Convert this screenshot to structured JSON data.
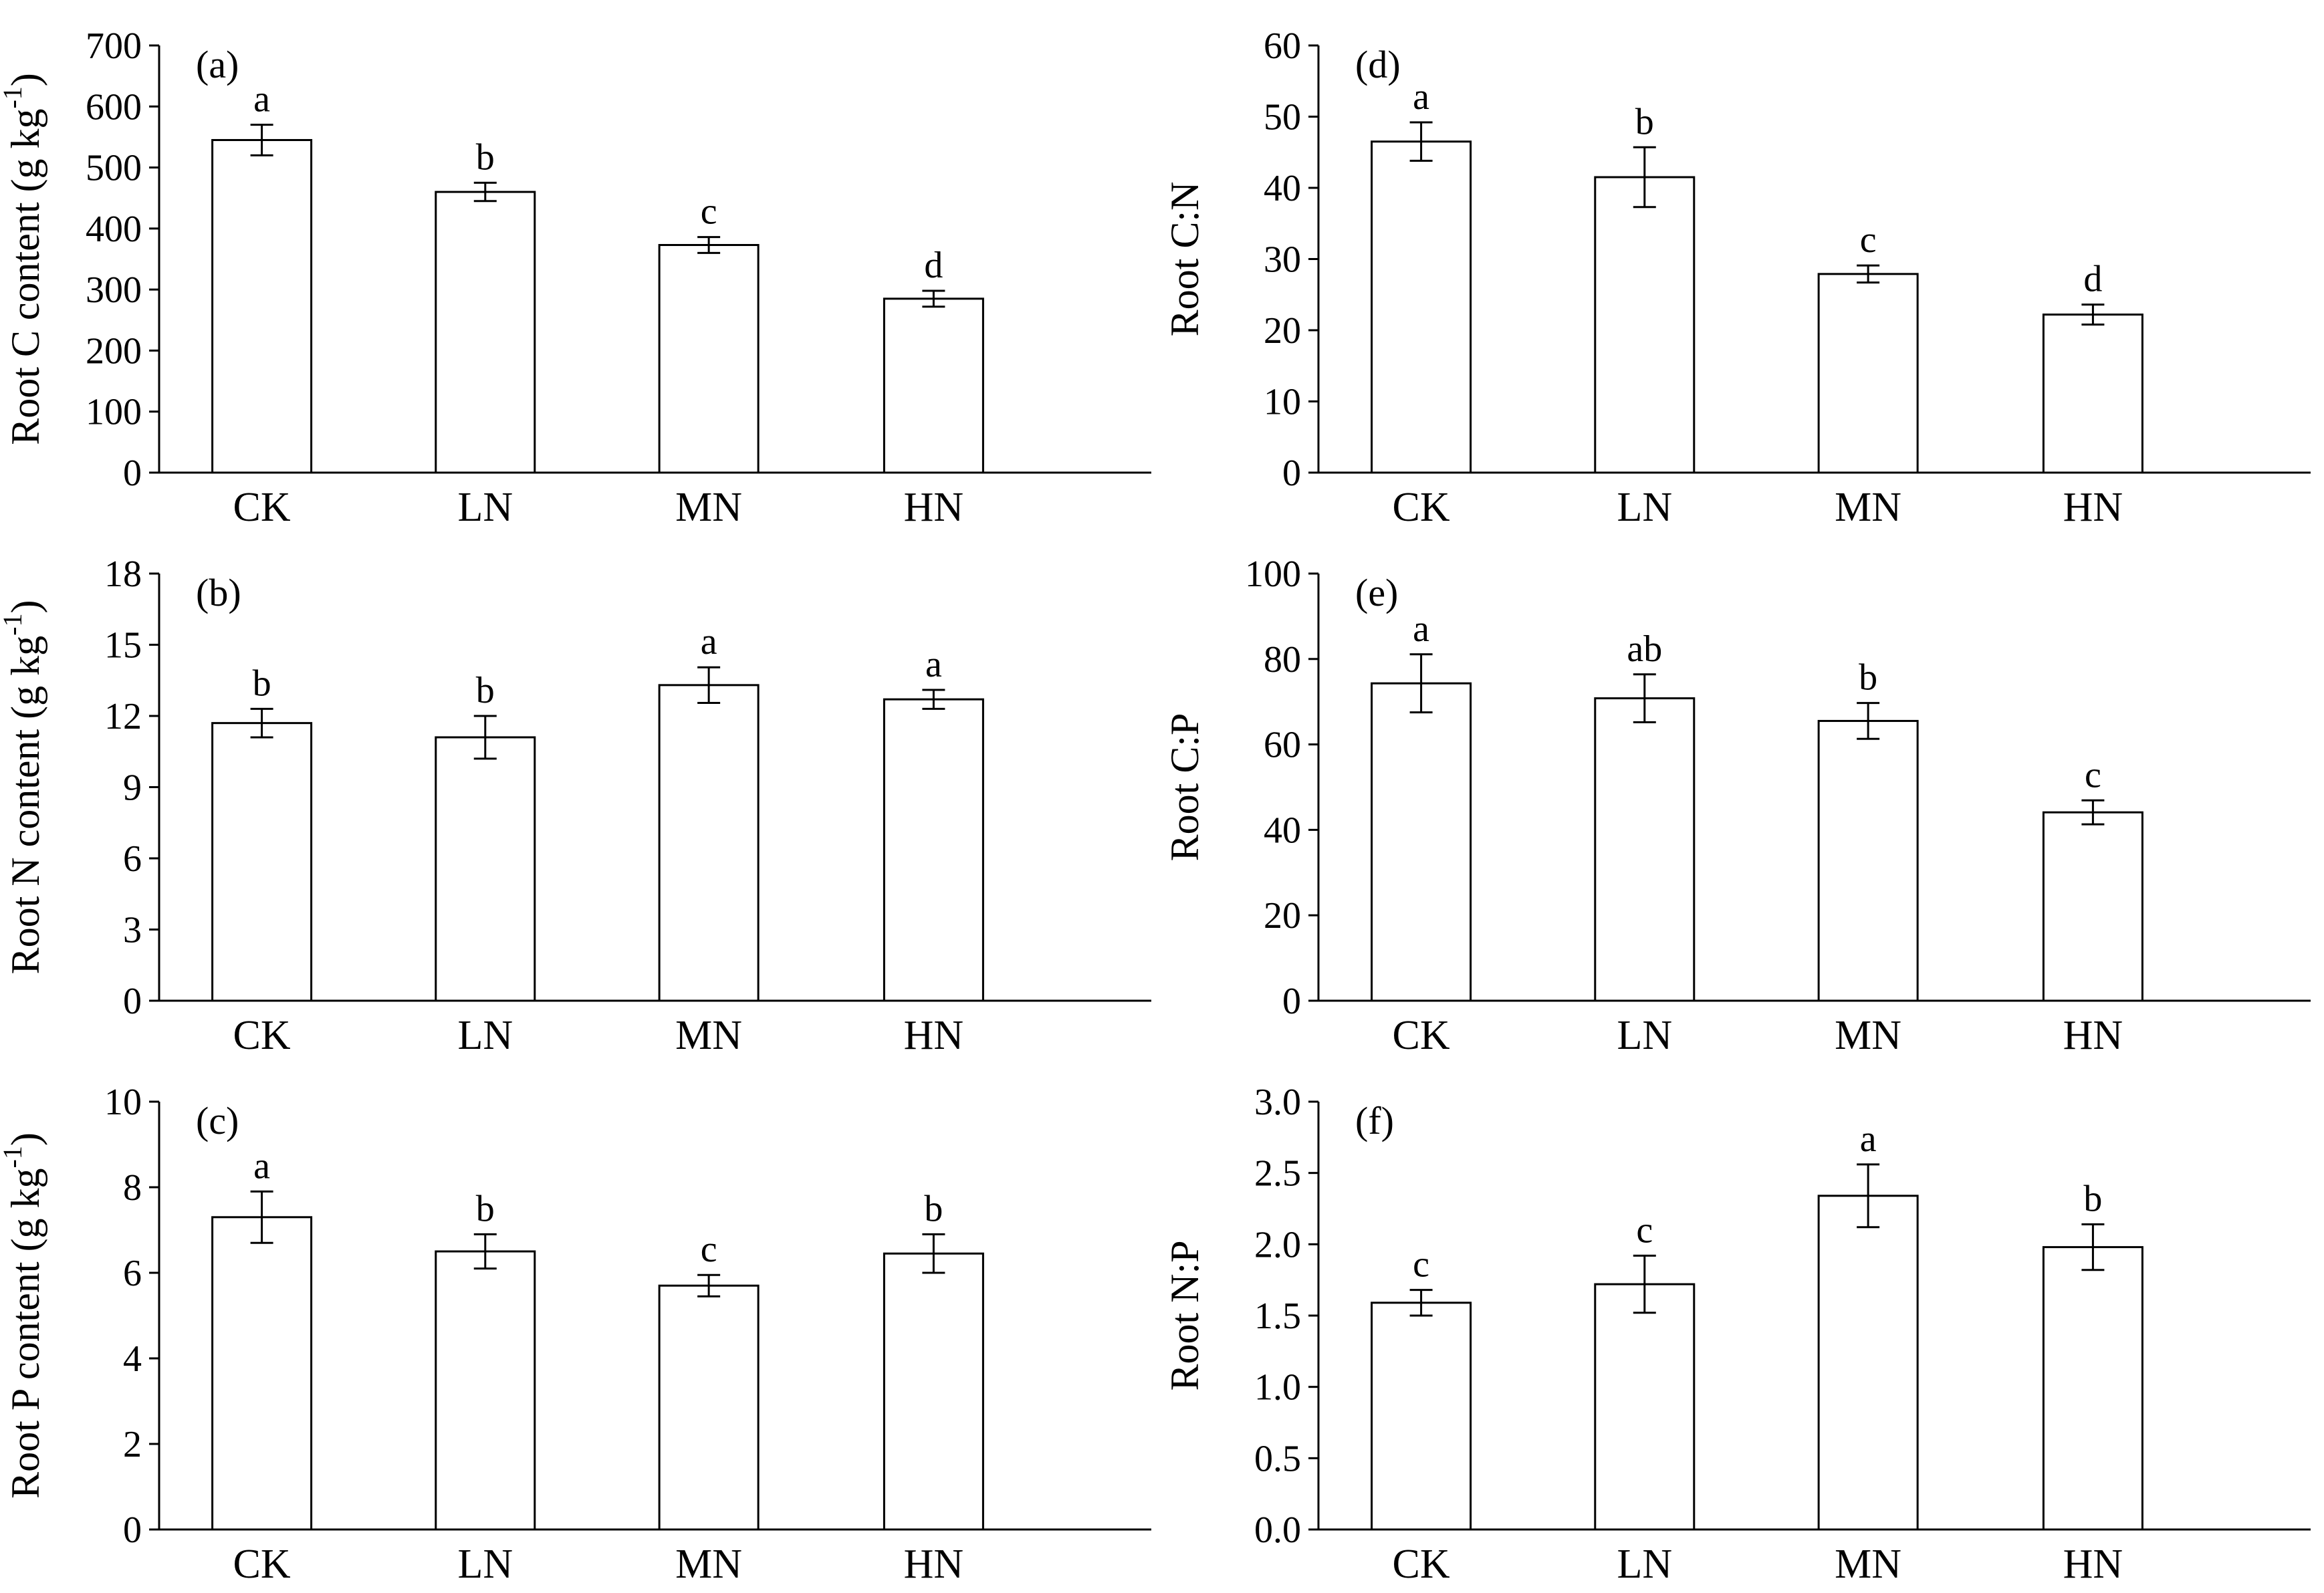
{
  "figure": {
    "colors": {
      "bar_fill": "#ffffff",
      "stroke": "#000000",
      "background": "#ffffff"
    }
  },
  "chart_data": [
    {
      "id": "a",
      "type": "bar",
      "panel_label": "(a)",
      "title": "",
      "xlabel": "",
      "ylabel": {
        "main": "Root C content (g kg",
        "sup": "-1",
        "end": ")"
      },
      "categories": [
        "CK",
        "LN",
        "MN",
        "HN"
      ],
      "values": [
        545,
        460,
        373,
        285
      ],
      "errors": [
        25,
        15,
        13,
        13
      ],
      "letters": [
        "a",
        "b",
        "c",
        "d"
      ],
      "ylim": [
        0,
        700
      ],
      "yticks": [
        "0",
        "100",
        "200",
        "300",
        "400",
        "500",
        "600",
        "700"
      ]
    },
    {
      "id": "b",
      "type": "bar",
      "panel_label": "(b)",
      "title": "",
      "xlabel": "",
      "ylabel": {
        "main": "Root N content (g kg",
        "sup": "-1",
        "end": ")"
      },
      "categories": [
        "CK",
        "LN",
        "MN",
        "HN"
      ],
      "values": [
        11.7,
        11.1,
        13.3,
        12.7
      ],
      "errors": [
        0.6,
        0.9,
        0.75,
        0.4
      ],
      "letters": [
        "b",
        "b",
        "a",
        "a"
      ],
      "ylim": [
        0,
        18
      ],
      "yticks": [
        "0",
        "3",
        "6",
        "9",
        "12",
        "15",
        "18"
      ]
    },
    {
      "id": "c",
      "type": "bar",
      "panel_label": "(c)",
      "title": "",
      "xlabel": "",
      "ylabel": {
        "main": "Root P content (g kg",
        "sup": "-1",
        "end": ")"
      },
      "categories": [
        "CK",
        "LN",
        "MN",
        "HN"
      ],
      "values": [
        7.3,
        6.5,
        5.7,
        6.45
      ],
      "errors": [
        0.6,
        0.4,
        0.25,
        0.45
      ],
      "letters": [
        "a",
        "b",
        "c",
        "b"
      ],
      "ylim": [
        0,
        10
      ],
      "yticks": [
        "0",
        "2",
        "4",
        "6",
        "8",
        "10"
      ]
    },
    {
      "id": "d",
      "type": "bar",
      "panel_label": "(d)",
      "title": "",
      "xlabel": "",
      "ylabel": {
        "main": "Root C:N"
      },
      "categories": [
        "CK",
        "LN",
        "MN",
        "HN"
      ],
      "values": [
        46.5,
        41.5,
        27.9,
        22.2
      ],
      "errors": [
        2.7,
        4.2,
        1.2,
        1.4
      ],
      "letters": [
        "a",
        "b",
        "c",
        "d"
      ],
      "ylim": [
        0,
        60
      ],
      "yticks": [
        "0",
        "10",
        "20",
        "30",
        "40",
        "50",
        "60"
      ]
    },
    {
      "id": "e",
      "type": "bar",
      "panel_label": "(e)",
      "title": "",
      "xlabel": "",
      "ylabel": {
        "main": "Root C:P"
      },
      "categories": [
        "CK",
        "LN",
        "MN",
        "HN"
      ],
      "values": [
        74.3,
        70.8,
        65.5,
        44.1
      ],
      "errors": [
        6.8,
        5.6,
        4.2,
        2.8
      ],
      "letters": [
        "a",
        "ab",
        "b",
        "c"
      ],
      "ylim": [
        0,
        100
      ],
      "yticks": [
        "0",
        "20",
        "40",
        "60",
        "80",
        "100"
      ]
    },
    {
      "id": "f",
      "type": "bar",
      "panel_label": "(f)",
      "title": "",
      "xlabel": "",
      "ylabel": {
        "main": "Root N:P"
      },
      "categories": [
        "CK",
        "LN",
        "MN",
        "HN"
      ],
      "values": [
        1.59,
        1.72,
        2.34,
        1.98
      ],
      "errors": [
        0.09,
        0.2,
        0.22,
        0.16
      ],
      "letters": [
        "c",
        "c",
        "a",
        "b"
      ],
      "ylim": [
        0,
        3
      ],
      "yticks": [
        "0.0",
        "0.5",
        "1.0",
        "1.5",
        "2.0",
        "2.5",
        "3.0"
      ]
    }
  ]
}
